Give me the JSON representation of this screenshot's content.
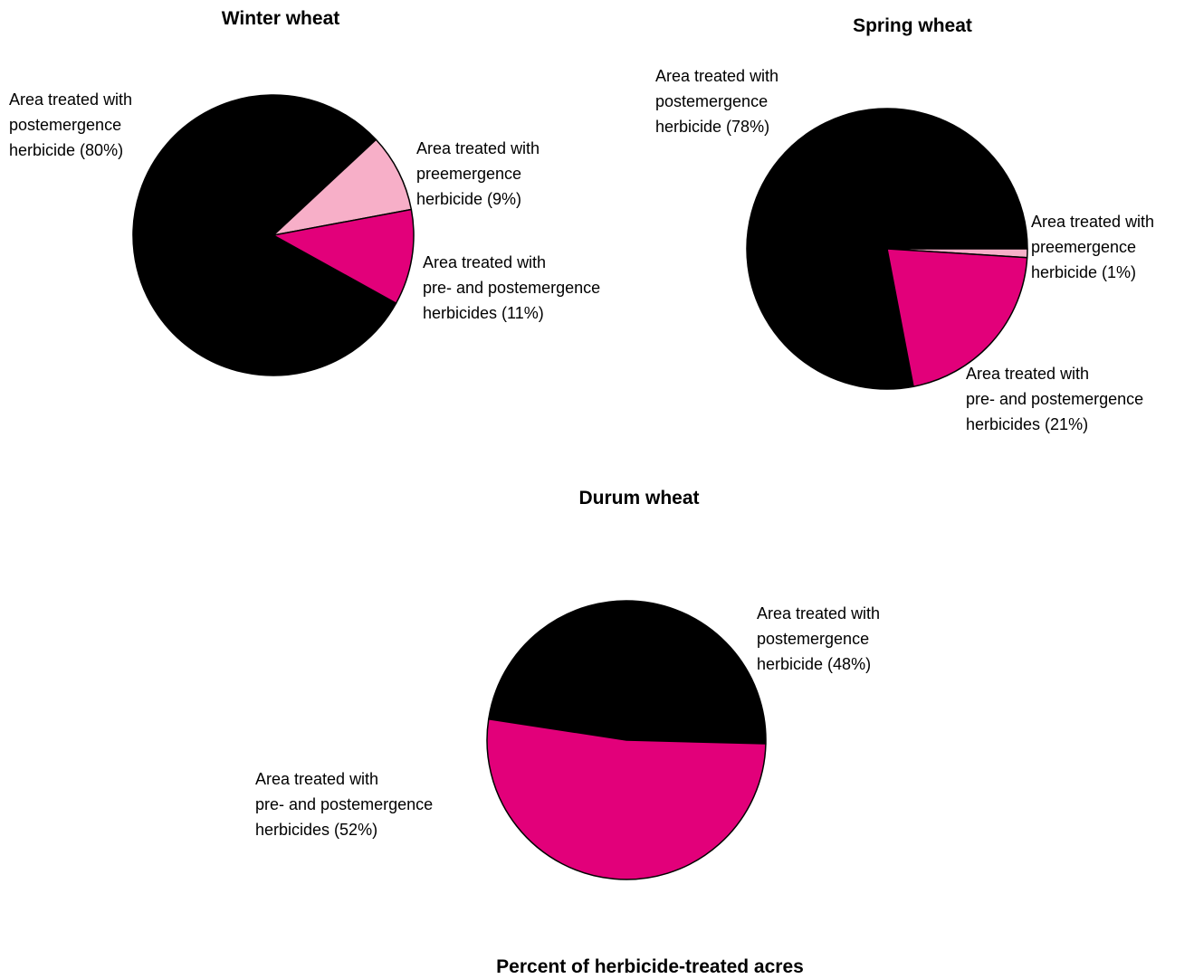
{
  "chart_data": [
    {
      "type": "pie",
      "title": "Winter wheat",
      "values": [
        80,
        9,
        11
      ],
      "value_labels": [
        [
          "Area treated with",
          "postemergence",
          "herbicide (80%)"
        ],
        [
          "Area treated with",
          "preemergence",
          "herbicide (9%)"
        ],
        [
          "Area treated with",
          "pre- and postemergence",
          "herbicides (11%)"
        ]
      ],
      "colors": [
        "#000000",
        "#f7afc8",
        "#e2007a"
      ]
    },
    {
      "type": "pie",
      "title": "Spring wheat",
      "values": [
        78,
        1,
        21
      ],
      "value_labels": [
        [
          "Area treated with",
          "postemergence",
          "herbicide (78%)"
        ],
        [
          "Area treated with",
          "preemergence",
          "herbicide (1%)"
        ],
        [
          "Area treated with",
          "pre- and postemergence",
          "herbicides (21%)"
        ]
      ],
      "colors": [
        "#000000",
        "#f7afc8",
        "#e2007a"
      ]
    },
    {
      "type": "pie",
      "title": "Durum wheat",
      "values": [
        48,
        52
      ],
      "value_labels": [
        [
          "Area treated with",
          "postemergence",
          "herbicide (48%)"
        ],
        [
          "Area treated with",
          "pre- and postemergence",
          "herbicides (52%)"
        ]
      ],
      "colors": [
        "#000000",
        "#e2007a"
      ]
    }
  ],
  "caption": "Percent of herbicide-treated acres"
}
